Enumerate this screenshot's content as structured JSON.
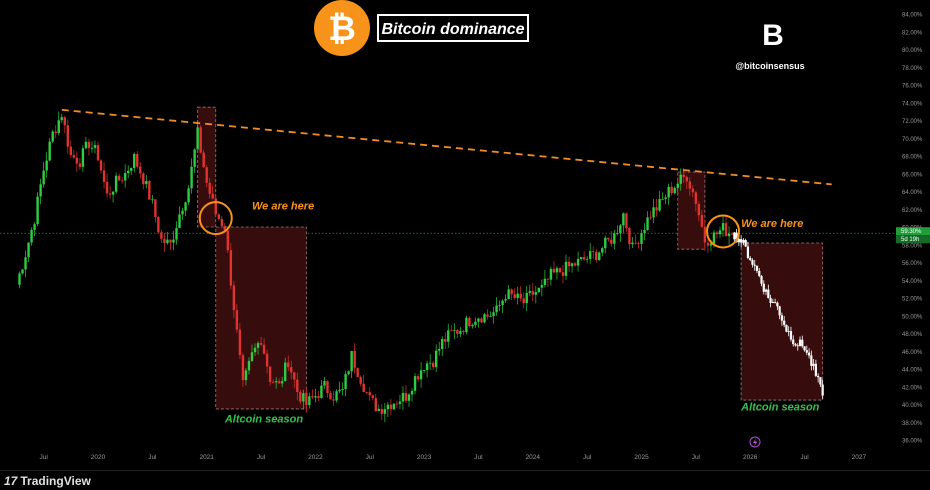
{
  "header": {
    "title": "Bitcoin dominance",
    "handle": "@bitcoinsensus",
    "brand_letter": "B"
  },
  "footer": {
    "brand": "TradingView",
    "brand_mark": "17"
  },
  "colors": {
    "up": "#26a69a",
    "up_bright": "#2ecc40",
    "down": "#e0322f",
    "trend": "#f28c28",
    "orange": "#f7931a",
    "box_fill": "#3a0d0d",
    "season_text": "#35c24a",
    "guide": "#1f9e3a"
  },
  "chart_data": {
    "type": "line",
    "title": "Bitcoin dominance",
    "ylim": [
      36,
      84
    ],
    "y_ticks": [
      "84.00%",
      "82.00%",
      "80.00%",
      "78.00%",
      "76.00%",
      "74.00%",
      "72.00%",
      "70.00%",
      "68.00%",
      "66.00%",
      "64.00%",
      "62.00%",
      "60.00%",
      "58.00%",
      "56.00%",
      "54.00%",
      "52.00%",
      "50.00%",
      "48.00%",
      "46.00%",
      "44.00%",
      "42.00%",
      "40.00%",
      "38.00%",
      "36.00%"
    ],
    "x_ticks": [
      "Jul",
      "2020",
      "Jul",
      "2021",
      "Jul",
      "2022",
      "Jul",
      "2023",
      "Jul",
      "2024",
      "Jul",
      "2025",
      "Jul",
      "2026",
      "Jul",
      "2027"
    ],
    "current_price_label": "59.30%",
    "current_time_label": "5d 19h",
    "guide_level": 59.3,
    "historical": [
      [
        "2019-04",
        53.5
      ],
      [
        "2019-05",
        57.0
      ],
      [
        "2019-06",
        61.0
      ],
      [
        "2019-07",
        66.5
      ],
      [
        "2019-08",
        70.5
      ],
      [
        "2019-09",
        72.8
      ],
      [
        "2019-10",
        68.0
      ],
      [
        "2019-11",
        67.5
      ],
      [
        "2019-12",
        69.5
      ],
      [
        "2020-01",
        68.0
      ],
      [
        "2020-02",
        63.5
      ],
      [
        "2020-03",
        65.0
      ],
      [
        "2020-04",
        66.0
      ],
      [
        "2020-05",
        67.8
      ],
      [
        "2020-06",
        65.5
      ],
      [
        "2020-07",
        62.5
      ],
      [
        "2020-08",
        58.5
      ],
      [
        "2020-09",
        58.0
      ],
      [
        "2020-10",
        61.5
      ],
      [
        "2020-11",
        64.5
      ],
      [
        "2020-12",
        70.5
      ],
      [
        "2021-01",
        65.0
      ],
      [
        "2021-02",
        61.5
      ],
      [
        "2021-03",
        60.0
      ],
      [
        "2021-04",
        51.0
      ],
      [
        "2021-05",
        42.0
      ],
      [
        "2021-06",
        45.5
      ],
      [
        "2021-07",
        47.5
      ],
      [
        "2021-08",
        43.0
      ],
      [
        "2021-09",
        42.0
      ],
      [
        "2021-10",
        45.0
      ],
      [
        "2021-11",
        41.5
      ],
      [
        "2021-12",
        40.0
      ],
      [
        "2022-01",
        41.0
      ],
      [
        "2022-02",
        42.0
      ],
      [
        "2022-03",
        41.0
      ],
      [
        "2022-04",
        41.5
      ],
      [
        "2022-05",
        45.5
      ],
      [
        "2022-06",
        43.0
      ],
      [
        "2022-07",
        40.5
      ],
      [
        "2022-08",
        39.5
      ],
      [
        "2022-09",
        40.0
      ],
      [
        "2022-10",
        40.5
      ],
      [
        "2022-11",
        41.0
      ],
      [
        "2022-12",
        43.0
      ],
      [
        "2023-01",
        44.5
      ],
      [
        "2023-02",
        45.0
      ],
      [
        "2023-03",
        47.0
      ],
      [
        "2023-04",
        48.0
      ],
      [
        "2023-05",
        48.5
      ],
      [
        "2023-06",
        49.5
      ],
      [
        "2023-07",
        50.0
      ],
      [
        "2023-08",
        50.0
      ],
      [
        "2023-09",
        50.5
      ],
      [
        "2023-10",
        52.5
      ],
      [
        "2023-11",
        52.0
      ],
      [
        "2023-12",
        51.5
      ],
      [
        "2024-01",
        52.5
      ],
      [
        "2024-02",
        53.0
      ],
      [
        "2024-03",
        54.5
      ],
      [
        "2024-04",
        55.0
      ],
      [
        "2024-05",
        55.5
      ],
      [
        "2024-06",
        56.0
      ],
      [
        "2024-07",
        56.5
      ],
      [
        "2024-08",
        57.0
      ],
      [
        "2024-09",
        58.0
      ],
      [
        "2024-10",
        59.0
      ],
      [
        "2024-11",
        61.5
      ],
      [
        "2024-12",
        57.5
      ],
      [
        "2025-01",
        59.5
      ],
      [
        "2025-02",
        61.5
      ],
      [
        "2025-03",
        62.5
      ],
      [
        "2025-04",
        64.0
      ],
      [
        "2025-05",
        65.0
      ],
      [
        "2025-06",
        65.8
      ],
      [
        "2025-07",
        63.0
      ],
      [
        "2025-08",
        58.5
      ],
      [
        "2025-09",
        59.0
      ],
      [
        "2025-10",
        59.8
      ],
      [
        "2025-11",
        59.2
      ]
    ],
    "projection": [
      [
        "2025-11",
        59.2
      ],
      [
        "2025-12",
        58.5
      ],
      [
        "2026-01",
        56.5
      ],
      [
        "2026-02",
        54.5
      ],
      [
        "2026-03",
        52.0
      ],
      [
        "2026-04",
        51.0
      ],
      [
        "2026-05",
        48.5
      ],
      [
        "2026-06",
        47.0
      ],
      [
        "2026-07",
        46.5
      ],
      [
        "2026-08",
        44.0
      ],
      [
        "2026-09",
        41.0
      ]
    ],
    "trend_line": [
      [
        "2019-09",
        73.2
      ],
      [
        "2026-10",
        64.8
      ]
    ],
    "boxes": [
      {
        "x": [
          "2020-12",
          "2021-02"
        ],
        "y": [
          60.0,
          73.5
        ]
      },
      {
        "x": [
          "2021-02",
          "2021-12"
        ],
        "y": [
          39.5,
          60.0
        ]
      },
      {
        "x": [
          "2025-05",
          "2025-08"
        ],
        "y": [
          57.5,
          66.2
        ]
      },
      {
        "x": [
          "2025-12",
          "2026-09"
        ],
        "y": [
          40.5,
          58.2
        ]
      }
    ],
    "circles": [
      {
        "x": "2021-02",
        "y": 61.0
      },
      {
        "x": "2025-10",
        "y": 59.5
      }
    ],
    "annotations": [
      {
        "text": "We are here",
        "x": "2021-06",
        "y": 62.0,
        "kind": "here"
      },
      {
        "text": "We are here",
        "x": "2025-12",
        "y": 60.0,
        "kind": "here"
      },
      {
        "text": "Altcoin season",
        "x": "2021-03",
        "y": 38.0,
        "kind": "season"
      },
      {
        "text": "Altcoin season",
        "x": "2025-12",
        "y": 39.3,
        "kind": "season"
      }
    ]
  }
}
